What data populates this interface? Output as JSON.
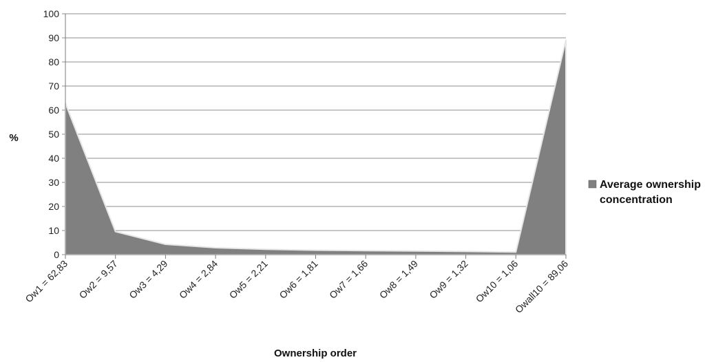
{
  "chart_data": {
    "type": "area",
    "title": "",
    "xlabel": "Ownership order",
    "ylabel": "%",
    "ylim": [
      0,
      100
    ],
    "yticks": [
      0,
      10,
      20,
      30,
      40,
      50,
      60,
      70,
      80,
      90,
      100
    ],
    "grid": true,
    "legend_position": "right",
    "categories": [
      "Ow1 = 62,83",
      "Ow2 = 9,57",
      "Ow3 = 4,29",
      "Ow4 = 2,84",
      "Ow5 = 2,21",
      "Ow6 = 1,81",
      "Ow7 = 1,66",
      "Ow8 = 1,49",
      "Ow9 = 1,32",
      "Ow10 = 1,06",
      "Owall10 = 89,06"
    ],
    "series": [
      {
        "name": "Average ownership concentration",
        "values": [
          62.83,
          9.57,
          4.29,
          2.84,
          2.21,
          1.81,
          1.66,
          1.49,
          1.32,
          1.06,
          89.06
        ],
        "color": "#808080"
      }
    ]
  }
}
